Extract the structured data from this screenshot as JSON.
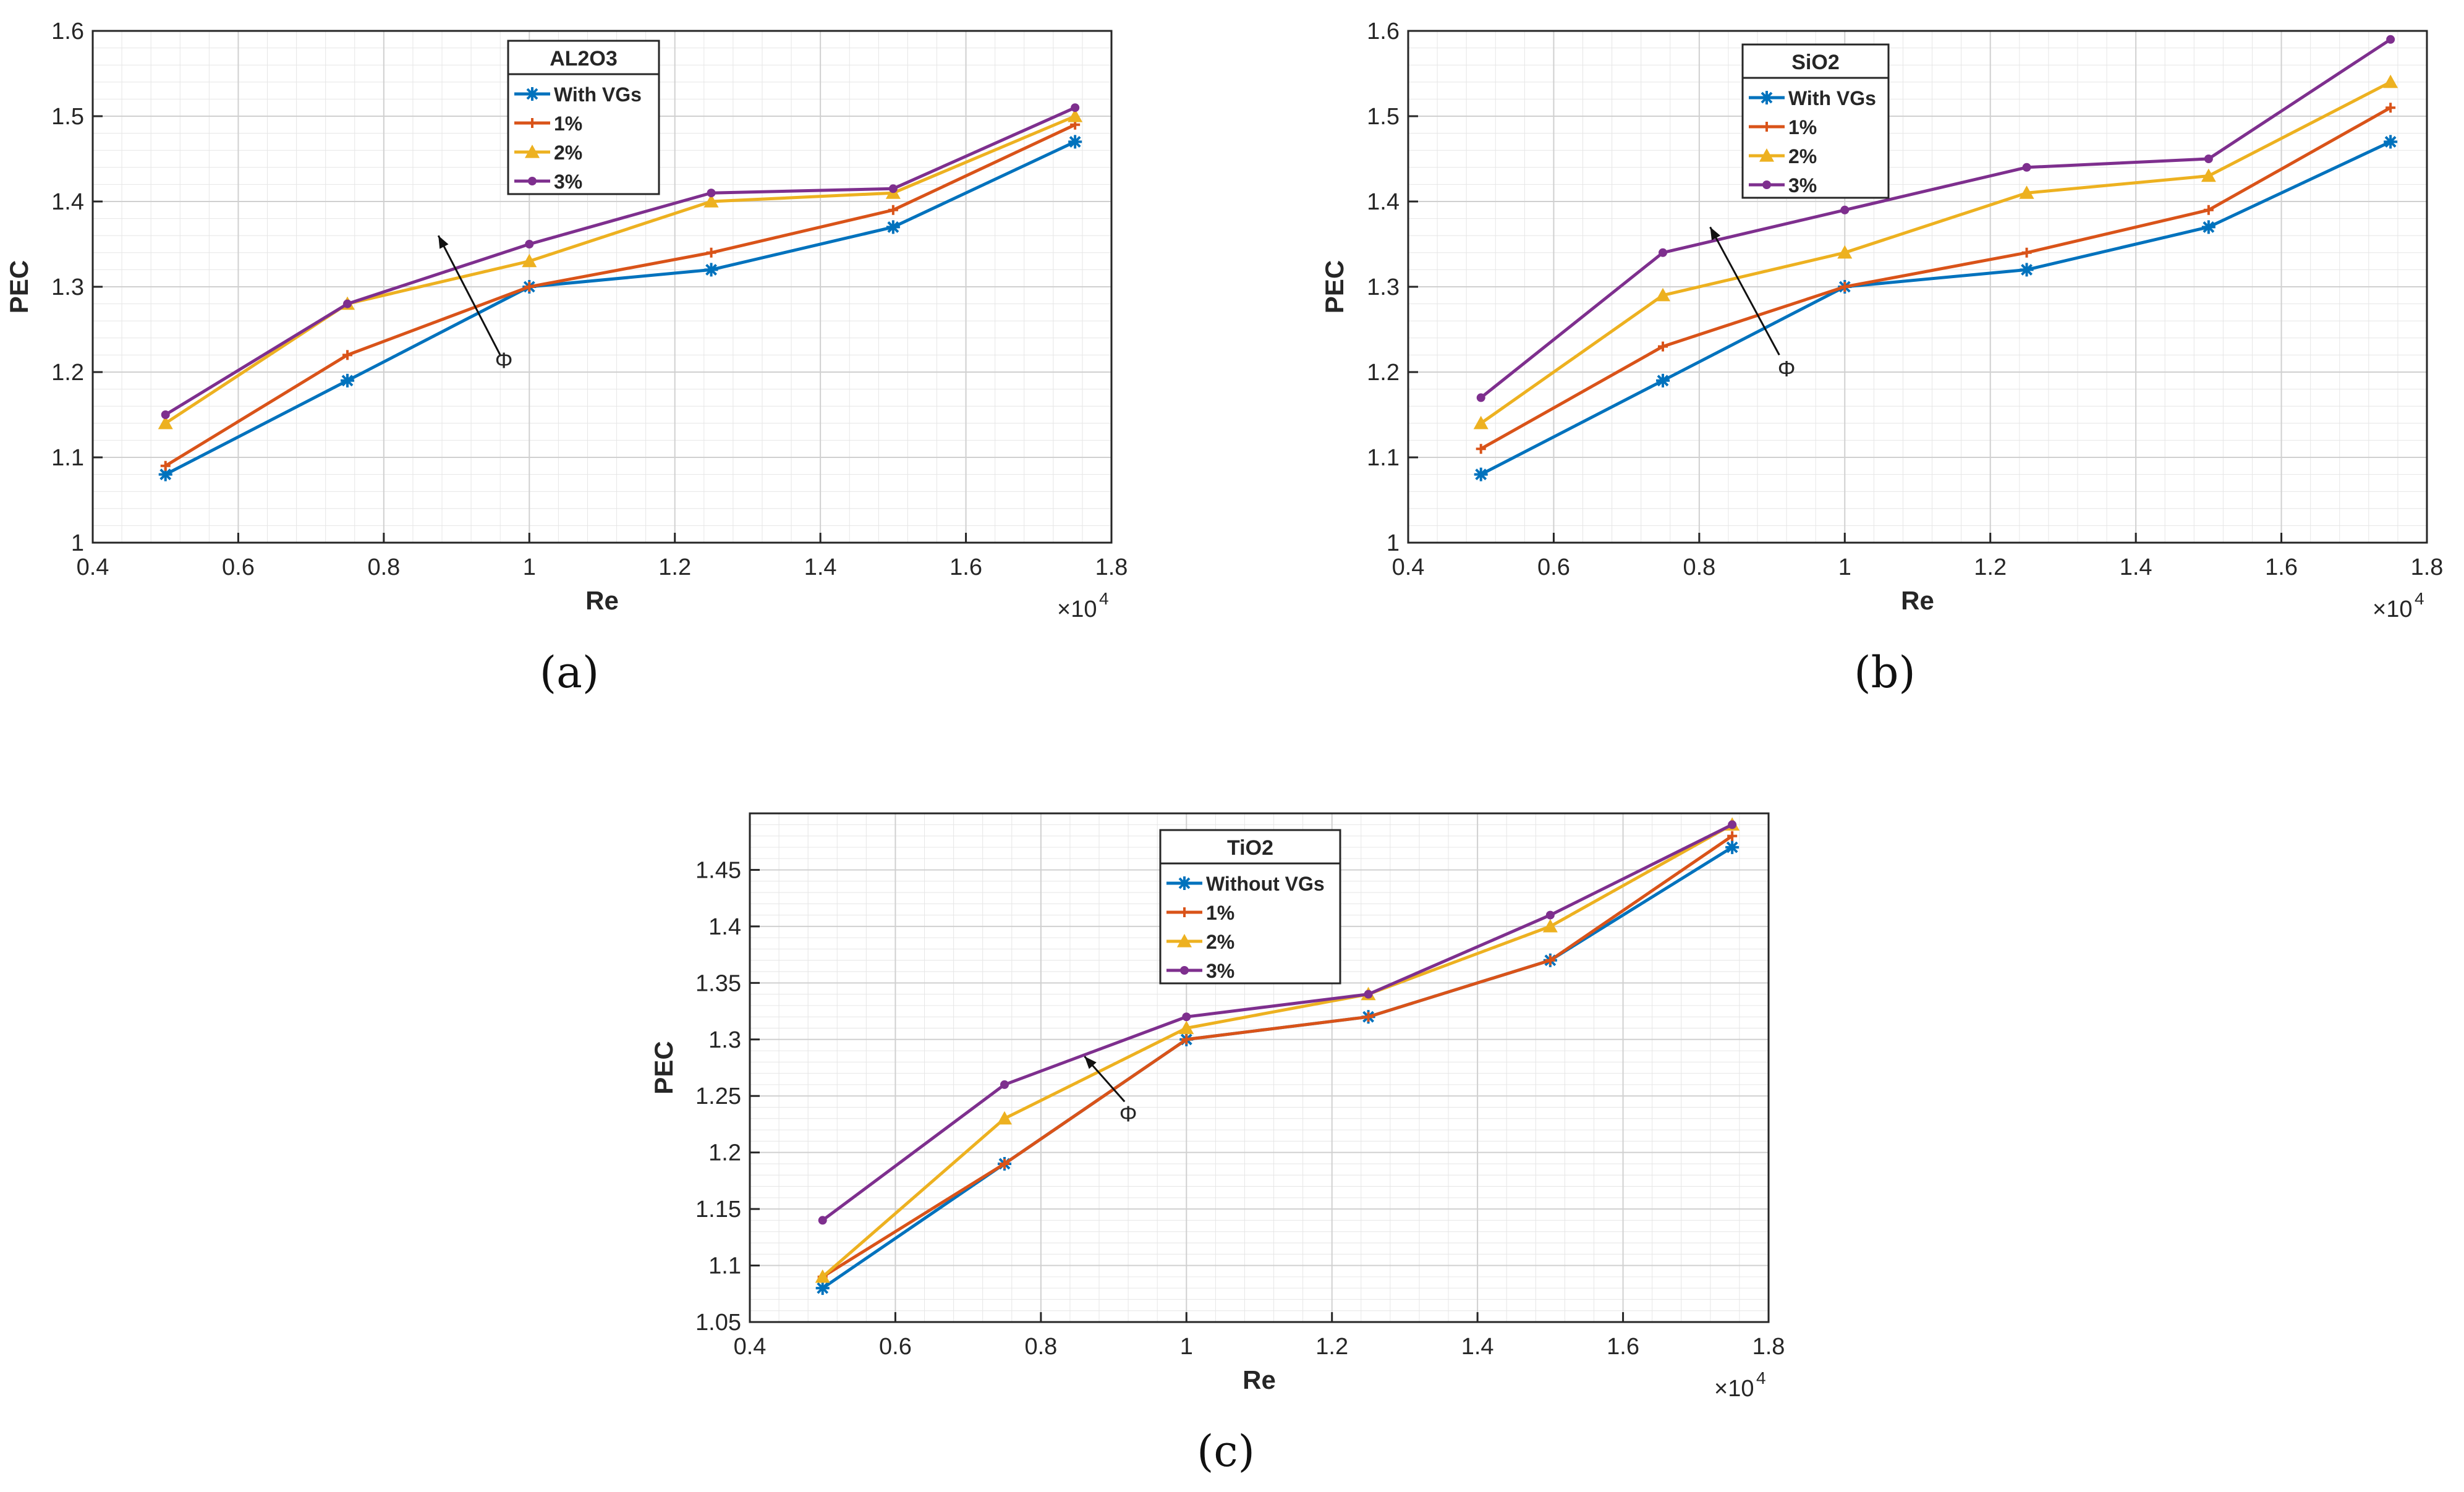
{
  "figure": {
    "captions": [
      "(a)",
      "(b)",
      "(c)"
    ]
  },
  "styles": {
    "series_colors": [
      "#0072BD",
      "#D95319",
      "#EDB120",
      "#7E2F8E"
    ],
    "series_markers": [
      "asterisk",
      "plus",
      "triangle",
      "dot"
    ]
  },
  "chart_data": [
    {
      "type": "line",
      "legend_title": "AL2O3",
      "xlabel": "Re",
      "ylabel": "PEC",
      "x_exponent_label": "×10",
      "x_exponent_power": "4",
      "xlim": [
        0.4,
        1.8
      ],
      "ylim": [
        1.0,
        1.6
      ],
      "xticks": [
        0.4,
        0.6,
        0.8,
        1.0,
        1.2,
        1.4,
        1.6,
        1.8
      ],
      "xtick_labels": [
        "0.4",
        "0.6",
        "0.8",
        "1",
        "1.2",
        "1.4",
        "1.6",
        "1.8"
      ],
      "yticks": [
        1.0,
        1.1,
        1.2,
        1.3,
        1.4,
        1.5,
        1.6
      ],
      "ytick_labels": [
        "1",
        "1.1",
        "1.2",
        "1.3",
        "1.4",
        "1.5",
        "1.6"
      ],
      "grid": true,
      "legend_position": "top-center",
      "x": [
        0.5,
        0.75,
        1.0,
        1.25,
        1.5,
        1.75
      ],
      "series": [
        {
          "name": "With VGs",
          "values": [
            1.08,
            1.19,
            1.3,
            1.32,
            1.37,
            1.47
          ]
        },
        {
          "name": "1%",
          "values": [
            1.09,
            1.22,
            1.3,
            1.34,
            1.39,
            1.49
          ]
        },
        {
          "name": "2%",
          "values": [
            1.14,
            1.28,
            1.33,
            1.4,
            1.41,
            1.5
          ]
        },
        {
          "name": "3%",
          "values": [
            1.15,
            1.28,
            1.35,
            1.41,
            1.415,
            1.51
          ]
        }
      ],
      "annotation": {
        "text": "Φ",
        "arrow_from": [
          0.96,
          1.22
        ],
        "arrow_to": [
          0.875,
          1.36
        ],
        "label_at": [
          0.965,
          1.215
        ]
      }
    },
    {
      "type": "line",
      "legend_title": "SiO2",
      "xlabel": "Re",
      "ylabel": "PEC",
      "x_exponent_label": "×10",
      "x_exponent_power": "4",
      "xlim": [
        0.4,
        1.8
      ],
      "ylim": [
        1.0,
        1.6
      ],
      "xticks": [
        0.4,
        0.6,
        0.8,
        1.0,
        1.2,
        1.4,
        1.6,
        1.8
      ],
      "xtick_labels": [
        "0.4",
        "0.6",
        "0.8",
        "1",
        "1.2",
        "1.4",
        "1.6",
        "1.8"
      ],
      "yticks": [
        1.0,
        1.1,
        1.2,
        1.3,
        1.4,
        1.5,
        1.6
      ],
      "ytick_labels": [
        "1",
        "1.1",
        "1.2",
        "1.3",
        "1.4",
        "1.5",
        "1.6"
      ],
      "grid": true,
      "legend_position": "top-center",
      "x": [
        0.5,
        0.75,
        1.0,
        1.25,
        1.5,
        1.75
      ],
      "series": [
        {
          "name": "With VGs",
          "values": [
            1.08,
            1.19,
            1.3,
            1.32,
            1.37,
            1.47
          ]
        },
        {
          "name": "1%",
          "values": [
            1.11,
            1.23,
            1.3,
            1.34,
            1.39,
            1.51
          ]
        },
        {
          "name": "2%",
          "values": [
            1.14,
            1.29,
            1.34,
            1.41,
            1.43,
            1.54
          ]
        },
        {
          "name": "3%",
          "values": [
            1.17,
            1.34,
            1.39,
            1.44,
            1.45,
            1.59
          ]
        }
      ],
      "annotation": {
        "text": "Φ",
        "arrow_from": [
          0.91,
          1.22
        ],
        "arrow_to": [
          0.815,
          1.37
        ],
        "label_at": [
          0.92,
          1.205
        ]
      }
    },
    {
      "type": "line",
      "legend_title": "TiO2",
      "xlabel": "Re",
      "ylabel": "PEC",
      "x_exponent_label": "×10",
      "x_exponent_power": "4",
      "xlim": [
        0.4,
        1.8
      ],
      "ylim": [
        1.05,
        1.5
      ],
      "xticks": [
        0.4,
        0.6,
        0.8,
        1.0,
        1.2,
        1.4,
        1.6,
        1.8
      ],
      "xtick_labels": [
        "0.4",
        "0.6",
        "0.8",
        "1",
        "1.2",
        "1.4",
        "1.6",
        "1.8"
      ],
      "yticks": [
        1.05,
        1.1,
        1.15,
        1.2,
        1.25,
        1.3,
        1.35,
        1.4,
        1.45
      ],
      "ytick_labels": [
        "1.05",
        "1.1",
        "1.15",
        "1.2",
        "1.25",
        "1.3",
        "1.35",
        "1.4",
        "1.45"
      ],
      "grid": true,
      "legend_position": "top-center",
      "x": [
        0.5,
        0.75,
        1.0,
        1.25,
        1.5,
        1.75
      ],
      "series": [
        {
          "name": "Without VGs",
          "values": [
            1.08,
            1.19,
            1.3,
            1.32,
            1.37,
            1.47
          ]
        },
        {
          "name": "1%",
          "values": [
            1.09,
            1.19,
            1.3,
            1.32,
            1.37,
            1.48
          ]
        },
        {
          "name": "2%",
          "values": [
            1.09,
            1.23,
            1.31,
            1.34,
            1.4,
            1.49
          ]
        },
        {
          "name": "3%",
          "values": [
            1.14,
            1.26,
            1.32,
            1.34,
            1.41,
            1.49
          ]
        }
      ],
      "annotation": {
        "text": "Φ",
        "arrow_from": [
          0.915,
          1.245
        ],
        "arrow_to": [
          0.86,
          1.285
        ],
        "label_at": [
          0.92,
          1.235
        ]
      }
    }
  ]
}
